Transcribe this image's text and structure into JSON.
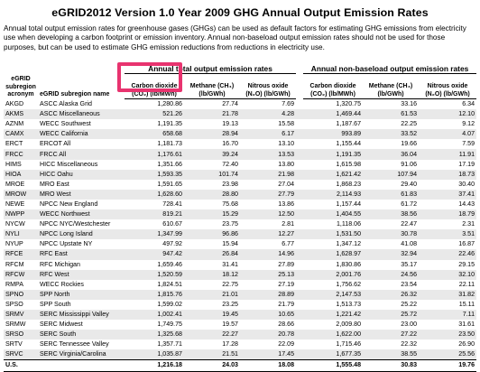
{
  "title": "eGRID2012 Version 1.0 Year 2009 GHG Annual Output Emission Rates",
  "intro": "Annual total output emission rates for greenhouse gases (GHGs) can be used as default factors for estimating GHG emissions from electricity use when developing a carbon footprint or emission inventory.  Annual non-baseload output emission rates should not be used for those purposes, but can be used to estimate GHG emission reductions from reductions in electricity use.",
  "header": {
    "col_acronym": "eGRID subregion acronym",
    "col_name": "eGRID subregion name",
    "group_total": "Annual total output emission rates",
    "group_nonbase": "Annual non-baseload output emission rates",
    "co2": "Carbon dioxide (CO₂) (lb/MWh)",
    "ch4": "Methane (CH₄) (lb/GWh)",
    "n2o": "Nitrous oxide (N₂O) (lb/GWh)"
  },
  "rows": [
    [
      "AKGD",
      "ASCC Alaska Grid",
      "1,280.86",
      "27.74",
      "7.69",
      "1,320.75",
      "33.16",
      "6.34"
    ],
    [
      "AKMS",
      "ASCC Miscellaneous",
      "521.26",
      "21.78",
      "4.28",
      "1,469.44",
      "61.53",
      "12.10"
    ],
    [
      "AZNM",
      "WECC Southwest",
      "1,191.35",
      "19.13",
      "15.58",
      "1,187.67",
      "22.25",
      "9.12"
    ],
    [
      "CAMX",
      "WECC California",
      "658.68",
      "28.94",
      "6.17",
      "993.89",
      "33.52",
      "4.07"
    ],
    [
      "ERCT",
      "ERCOT All",
      "1,181.73",
      "16.70",
      "13.10",
      "1,155.44",
      "19.66",
      "7.59"
    ],
    [
      "FRCC",
      "FRCC All",
      "1,176.61",
      "39.24",
      "13.53",
      "1,191.35",
      "36.04",
      "11.91"
    ],
    [
      "HIMS",
      "HICC Miscellaneous",
      "1,351.66",
      "72.40",
      "13.80",
      "1,615.98",
      "91.06",
      "17.19"
    ],
    [
      "HIOA",
      "HICC Oahu",
      "1,593.35",
      "101.74",
      "21.98",
      "1,621.42",
      "107.94",
      "18.73"
    ],
    [
      "MROE",
      "MRO East",
      "1,591.65",
      "23.98",
      "27.04",
      "1,868.23",
      "29.40",
      "30.40"
    ],
    [
      "MROW",
      "MRO West",
      "1,628.60",
      "28.80",
      "27.79",
      "2,114.93",
      "61.83",
      "37.41"
    ],
    [
      "NEWE",
      "NPCC New England",
      "728.41",
      "75.68",
      "13.86",
      "1,157.44",
      "61.72",
      "14.43"
    ],
    [
      "NWPP",
      "WECC Northwest",
      "819.21",
      "15.29",
      "12.50",
      "1,404.55",
      "38.56",
      "18.79"
    ],
    [
      "NYCW",
      "NPCC NYC/Westchester",
      "610.67",
      "23.75",
      "2.81",
      "1,118.06",
      "22.47",
      "2.31"
    ],
    [
      "NYLI",
      "NPCC Long Island",
      "1,347.99",
      "96.86",
      "12.27",
      "1,531.50",
      "30.78",
      "3.51"
    ],
    [
      "NYUP",
      "NPCC Upstate NY",
      "497.92",
      "15.94",
      "6.77",
      "1,347.12",
      "41.08",
      "16.87"
    ],
    [
      "RFCE",
      "RFC East",
      "947.42",
      "26.84",
      "14.96",
      "1,628.97",
      "32.94",
      "22.46"
    ],
    [
      "RFCM",
      "RFC Michigan",
      "1,659.46",
      "31.41",
      "27.89",
      "1,830.86",
      "35.17",
      "29.15"
    ],
    [
      "RFCW",
      "RFC West",
      "1,520.59",
      "18.12",
      "25.13",
      "2,001.76",
      "24.56",
      "32.10"
    ],
    [
      "RMPA",
      "WECC Rockies",
      "1,824.51",
      "22.75",
      "27.19",
      "1,756.62",
      "23.54",
      "22.11"
    ],
    [
      "SPNO",
      "SPP North",
      "1,815.76",
      "21.01",
      "28.89",
      "2,147.53",
      "26.32",
      "31.82"
    ],
    [
      "SPSO",
      "SPP South",
      "1,599.02",
      "23.25",
      "21.79",
      "1,513.73",
      "25.22",
      "15.11"
    ],
    [
      "SRMV",
      "SERC Mississippi Valley",
      "1,002.41",
      "19.45",
      "10.65",
      "1,221.42",
      "25.72",
      "7.11"
    ],
    [
      "SRMW",
      "SERC Midwest",
      "1,749.75",
      "19.57",
      "28.66",
      "2,009.80",
      "23.00",
      "31.61"
    ],
    [
      "SRSO",
      "SERC South",
      "1,325.68",
      "22.27",
      "20.78",
      "1,622.00",
      "27.22",
      "23.50"
    ],
    [
      "SRTV",
      "SERC Tennessee Valley",
      "1,357.71",
      "17.28",
      "22.09",
      "1,715.46",
      "22.32",
      "26.90"
    ],
    [
      "SRVC",
      "SERC Virginia/Carolina",
      "1,035.87",
      "21.51",
      "17.45",
      "1,677.35",
      "38.55",
      "25.56"
    ]
  ],
  "total": [
    "U.S.",
    "",
    "1,216.18",
    "24.03",
    "18.08",
    "1,555.48",
    "30.83",
    "19.76"
  ],
  "colors": {
    "highlight": "#e8336f",
    "shade": "#e9e9e9"
  }
}
